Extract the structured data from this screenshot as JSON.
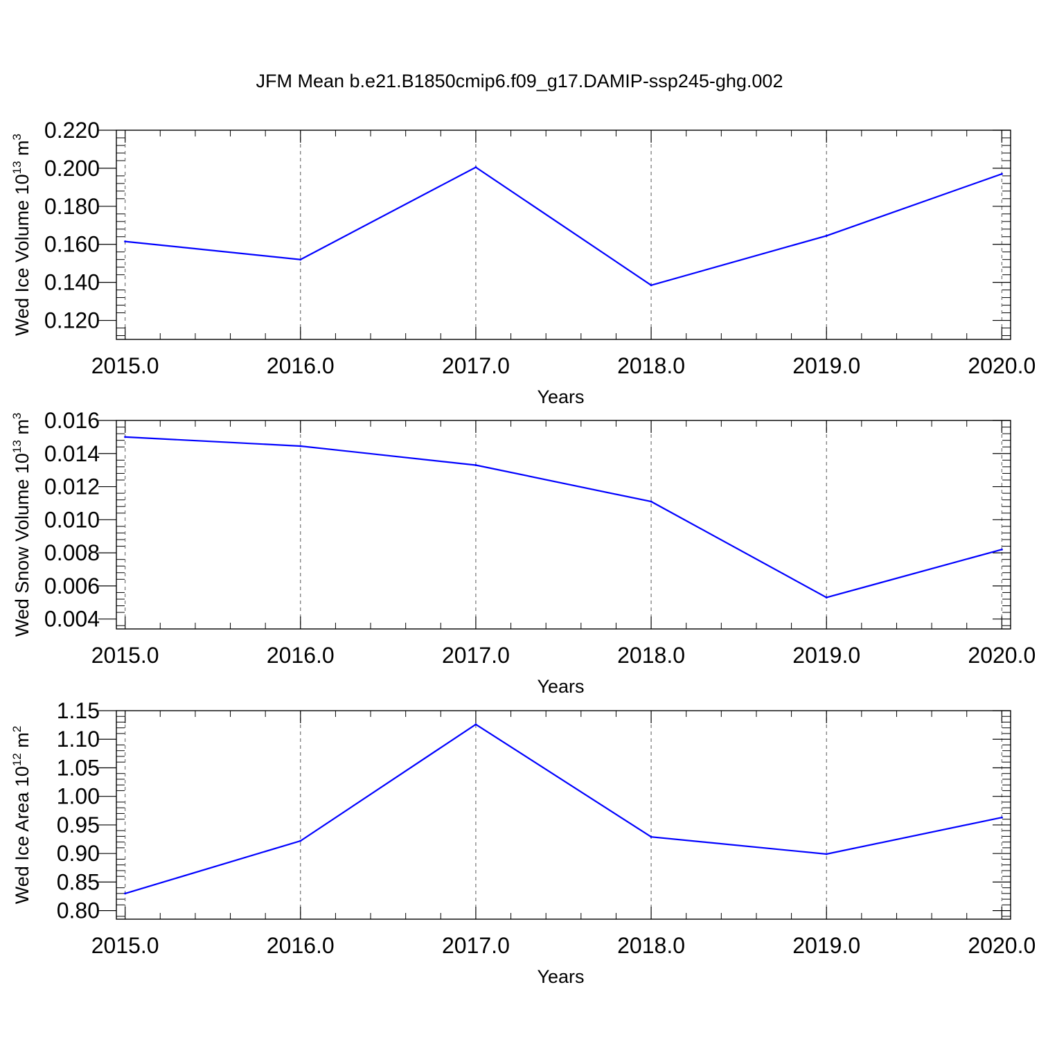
{
  "title": "JFM Mean b.e21.B1850cmip6.f09_g17.DAMIP-ssp245-ghg.002",
  "colors": {
    "line": "#0000ff",
    "axis": "#000000",
    "grid": "#555555"
  },
  "chart_data": [
    {
      "type": "line",
      "ylabel": {
        "main": "Wed Ice Volume 10",
        "exp": "13",
        "unit": " m",
        "unit_exp": "3"
      },
      "xlabel": "Years",
      "xlim": [
        2014.95,
        2020.05
      ],
      "ylim": [
        0.11,
        0.22
      ],
      "xticks": [
        2015,
        2016,
        2017,
        2018,
        2019,
        2020
      ],
      "xtick_labels": [
        "2015.0",
        "2016.0",
        "2017.0",
        "2018.0",
        "2019.0",
        "2020.0"
      ],
      "yticks": [
        0.12,
        0.14,
        0.16,
        0.18,
        0.2,
        0.22
      ],
      "ytick_labels": [
        "0.120",
        "0.140",
        "0.160",
        "0.180",
        "0.200",
        "0.220"
      ],
      "grid": "x-dashed",
      "x": [
        2015,
        2016,
        2017,
        2018,
        2019,
        2020
      ],
      "y": [
        0.1615,
        0.152,
        0.2005,
        0.1385,
        0.1645,
        0.197
      ]
    },
    {
      "type": "line",
      "ylabel": {
        "main": "Wed Snow Volume 10",
        "exp": "13",
        "unit": " m",
        "unit_exp": "3"
      },
      "xlabel": "Years",
      "xlim": [
        2014.95,
        2020.05
      ],
      "ylim": [
        0.0034,
        0.016
      ],
      "xticks": [
        2015,
        2016,
        2017,
        2018,
        2019,
        2020
      ],
      "xtick_labels": [
        "2015.0",
        "2016.0",
        "2017.0",
        "2018.0",
        "2019.0",
        "2020.0"
      ],
      "yticks": [
        0.004,
        0.006,
        0.008,
        0.01,
        0.012,
        0.014,
        0.016
      ],
      "ytick_labels": [
        "0.004",
        "0.006",
        "0.008",
        "0.010",
        "0.012",
        "0.014",
        "0.016"
      ],
      "grid": "x-dashed",
      "x": [
        2015,
        2016,
        2017,
        2018,
        2019,
        2020
      ],
      "y": [
        0.015,
        0.01445,
        0.0133,
        0.0111,
        0.0053,
        0.0082
      ]
    },
    {
      "type": "line",
      "ylabel": {
        "main": "Wed Ice Area 10",
        "exp": "12",
        "unit": " m",
        "unit_exp": "2"
      },
      "xlabel": "Years",
      "xlim": [
        2014.95,
        2020.05
      ],
      "ylim": [
        0.785,
        1.15
      ],
      "xticks": [
        2015,
        2016,
        2017,
        2018,
        2019,
        2020
      ],
      "xtick_labels": [
        "2015.0",
        "2016.0",
        "2017.0",
        "2018.0",
        "2019.0",
        "2020.0"
      ],
      "yticks": [
        0.8,
        0.85,
        0.9,
        0.95,
        1.0,
        1.05,
        1.1,
        1.15
      ],
      "ytick_labels": [
        "0.80",
        "0.85",
        "0.90",
        "0.95",
        "1.00",
        "1.05",
        "1.10",
        "1.15"
      ],
      "grid": "x-dashed",
      "x": [
        2015,
        2016,
        2017,
        2018,
        2019,
        2020
      ],
      "y": [
        0.83,
        0.922,
        1.126,
        0.929,
        0.899,
        0.963
      ]
    }
  ]
}
